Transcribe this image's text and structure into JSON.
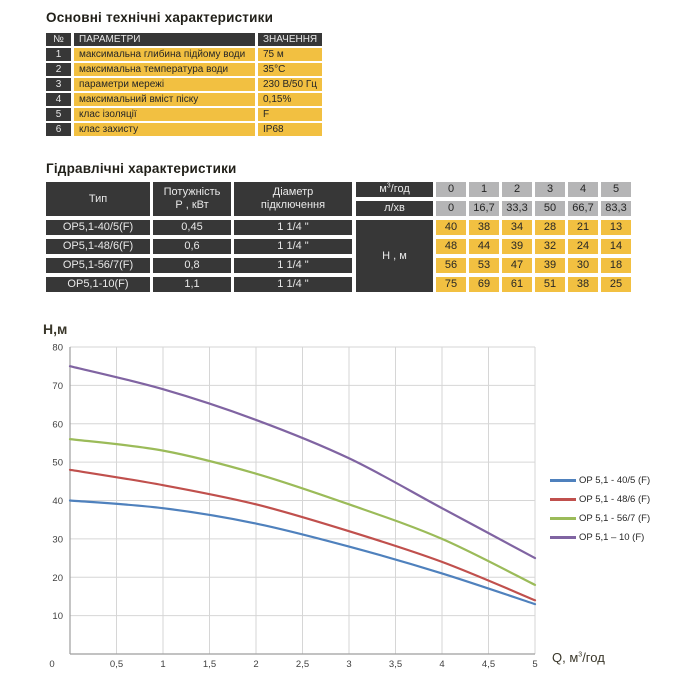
{
  "tech_table": {
    "title": "Основні технічні характеристики",
    "headers": {
      "num": "№",
      "param": "ПАРАМЕТРИ",
      "value": "ЗНАЧЕННЯ"
    },
    "rows": [
      {
        "num": "1",
        "param": "максимальна глибина підйому води",
        "value": "75 м"
      },
      {
        "num": "2",
        "param": "максимальна температура води",
        "value": "35°С"
      },
      {
        "num": "3",
        "param": "параметри мережі",
        "value": "230 В/50 Гц"
      },
      {
        "num": "4",
        "param": "максимальний вміст піску",
        "value": "0,15%"
      },
      {
        "num": "5",
        "param": "клас ізоляції",
        "value": "F"
      },
      {
        "num": "6",
        "param": "клас захисту",
        "value": "IP68"
      }
    ]
  },
  "hydro_table": {
    "title": "Гідравлічні характеристики",
    "col_headers": {
      "type": "Тип",
      "power_line1": "Потужність",
      "power_line2": "Р , кВт",
      "diam_line1": "Діаметр",
      "diam_line2": "підключення"
    },
    "flow_header": {
      "m3_prefix": "м",
      "m3_sup": "3",
      "m3_suffix": "/год",
      "lmin": "л/хв",
      "head_label": "Н , м"
    },
    "flow_m3": [
      "0",
      "1",
      "2",
      "3",
      "4",
      "5"
    ],
    "flow_lmin": [
      "0",
      "16,7",
      "33,3",
      "50",
      "66,7",
      "83,3"
    ],
    "rows": [
      {
        "type": "OP5,1-40/5(F)",
        "power": "0,45",
        "diameter": "1 1/4 \"",
        "head": [
          "40",
          "38",
          "34",
          "28",
          "21",
          "13"
        ]
      },
      {
        "type": "OP5,1-48/6(F)",
        "power": "0,6",
        "diameter": "1 1/4 \"",
        "head": [
          "48",
          "44",
          "39",
          "32",
          "24",
          "14"
        ]
      },
      {
        "type": "OP5,1-56/7(F)",
        "power": "0,8",
        "diameter": "1 1/4 \"",
        "head": [
          "56",
          "53",
          "47",
          "39",
          "30",
          "18"
        ]
      },
      {
        "type": "OP5,1-10(F)",
        "power": "1,1",
        "diameter": "1 1/4 \"",
        "head": [
          "75",
          "69",
          "61",
          "51",
          "38",
          "25"
        ]
      }
    ],
    "colors": {
      "cell_dark": "#373737",
      "cell_yellow": "#f2c041",
      "cell_gray": "#b5b5b6"
    }
  },
  "chart_data": {
    "type": "line",
    "title": "",
    "ylabel": "Н,м",
    "xlabel_parts": {
      "prefix": "Q,  ",
      "m": "м",
      "sup": "3",
      "suffix": "/год"
    },
    "x": [
      0,
      1,
      2,
      3,
      4,
      5
    ],
    "xlim": [
      0,
      5
    ],
    "ylim": [
      0,
      80
    ],
    "x_ticks": [
      0,
      0.5,
      1,
      1.5,
      2,
      2.5,
      3,
      3.5,
      4,
      4.5,
      5
    ],
    "x_tick_labels": [
      "0",
      "0,5",
      "1",
      "1,5",
      "2",
      "2,5",
      "3",
      "3,5",
      "4",
      "4,5",
      "5"
    ],
    "y_ticks": [
      10,
      20,
      30,
      40,
      50,
      60,
      70,
      80
    ],
    "grid": true,
    "legend_position": "right",
    "grid_color": "#d6d6d6",
    "axis_color": "#9e9e9e",
    "series": [
      {
        "name": "OP 5,1 - 40/5 (F)",
        "color": "#4f81bd",
        "values": [
          40,
          38,
          34,
          28,
          21,
          13
        ]
      },
      {
        "name": "OP 5,1 - 48/6 (F)",
        "color": "#c0504d",
        "values": [
          48,
          44,
          39,
          32,
          24,
          14
        ]
      },
      {
        "name": "OP 5,1 - 56/7 (F)",
        "color": "#9bbb59",
        "values": [
          56,
          53,
          47,
          39,
          30,
          18
        ]
      },
      {
        "name": "OP 5,1 – 10 (F)",
        "color": "#8064a2",
        "values": [
          75,
          69,
          61,
          51,
          38,
          25
        ]
      }
    ]
  }
}
